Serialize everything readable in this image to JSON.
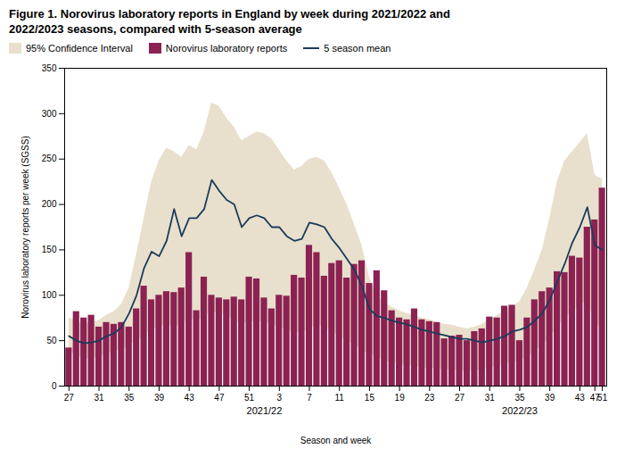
{
  "chart_data": {
    "type": "bar",
    "title": "Figure 1. Norovirus laboratory reports in England by week during 2021/2022 and\n2022/2023 seasons, compared with 5-season average",
    "xlabel": "Season and week",
    "ylabel": "Norovirus laboratory reports per week (SGSS)",
    "categories": [
      "27",
      null,
      null,
      null,
      "31",
      null,
      null,
      null,
      "35",
      null,
      null,
      null,
      "39",
      null,
      null,
      null,
      "43",
      null,
      null,
      null,
      "47",
      null,
      null,
      null,
      "51",
      null,
      null,
      null,
      "3",
      null,
      null,
      null,
      "7",
      null,
      null,
      null,
      "11",
      null,
      null,
      null,
      "15",
      null,
      null,
      null,
      "19",
      null,
      null,
      null,
      "23",
      null,
      null,
      null,
      "27",
      null,
      null,
      null,
      "31",
      null,
      null,
      null,
      "35",
      null,
      null,
      null,
      "39",
      null,
      null,
      null,
      "43",
      null,
      "47",
      "51"
    ],
    "series": [
      {
        "name": "95% Confidence Interval",
        "type": "area",
        "color": "#E8E0CC",
        "lower": [
          38,
          33,
          30,
          30,
          32,
          35,
          38,
          40,
          44,
          50,
          55,
          62,
          65,
          68,
          65,
          68,
          75,
          72,
          75,
          82,
          80,
          78,
          72,
          68,
          70,
          72,
          70,
          68,
          65,
          62,
          58,
          60,
          62,
          68,
          65,
          60,
          55,
          50,
          45,
          40,
          35,
          32,
          28,
          26,
          24,
          22,
          22,
          20,
          20,
          19,
          18,
          18,
          17,
          16,
          17,
          18,
          20,
          22,
          24,
          26,
          28,
          32,
          38,
          45,
          53,
          65,
          75,
          82,
          88,
          95,
          68,
          65
        ],
        "upper": [
          75,
          72,
          68,
          70,
          72,
          78,
          82,
          90,
          108,
          145,
          185,
          225,
          248,
          262,
          258,
          252,
          265,
          260,
          280,
          312,
          308,
          295,
          285,
          270,
          275,
          280,
          278,
          272,
          260,
          248,
          238,
          242,
          250,
          252,
          248,
          235,
          218,
          200,
          178,
          155,
          120,
          100,
          92,
          87,
          83,
          80,
          78,
          75,
          73,
          70,
          68,
          67,
          65,
          63,
          65,
          68,
          73,
          78,
          82,
          87,
          93,
          108,
          128,
          150,
          185,
          225,
          248,
          258,
          268,
          278,
          232,
          228
        ]
      },
      {
        "name": "Norovirus laboratory reports",
        "type": "bar",
        "color": "#8B2252",
        "values": [
          42,
          82,
          75,
          78,
          65,
          70,
          68,
          70,
          65,
          85,
          110,
          95,
          100,
          104,
          103,
          108,
          147,
          83,
          120,
          100,
          97,
          95,
          98,
          95,
          120,
          118,
          97,
          85,
          100,
          99,
          122,
          119,
          155,
          147,
          121,
          135,
          138,
          119,
          134,
          138,
          113,
          127,
          105,
          83,
          75,
          73,
          85,
          73,
          71,
          70,
          52,
          55,
          56,
          50,
          60,
          63,
          76,
          75,
          88,
          89,
          50,
          75,
          95,
          104,
          108,
          126,
          125,
          143,
          141,
          175,
          183,
          218
        ]
      },
      {
        "name": "5 season mean",
        "type": "line",
        "color": "#1B3A5C",
        "values": [
          55,
          50,
          47,
          48,
          50,
          55,
          58,
          65,
          80,
          100,
          130,
          148,
          143,
          160,
          195,
          165,
          185,
          185,
          195,
          227,
          215,
          205,
          200,
          175,
          185,
          188,
          185,
          175,
          175,
          165,
          160,
          162,
          180,
          178,
          175,
          162,
          152,
          140,
          128,
          110,
          85,
          77,
          75,
          72,
          70,
          68,
          65,
          62,
          60,
          58,
          56,
          54,
          52,
          52,
          50,
          48,
          50,
          52,
          55,
          60,
          62,
          65,
          72,
          80,
          95,
          115,
          135,
          158,
          175,
          197,
          155,
          150
        ]
      }
    ],
    "annotations": [
      {
        "text": "2021/22",
        "x": 26
      },
      {
        "text": "2022/23",
        "x": 60
      }
    ],
    "ylim": [
      0,
      350
    ],
    "yticks": [
      0,
      50,
      100,
      150,
      200,
      250,
      300,
      350
    ],
    "legend": "upper left",
    "grid": false
  }
}
